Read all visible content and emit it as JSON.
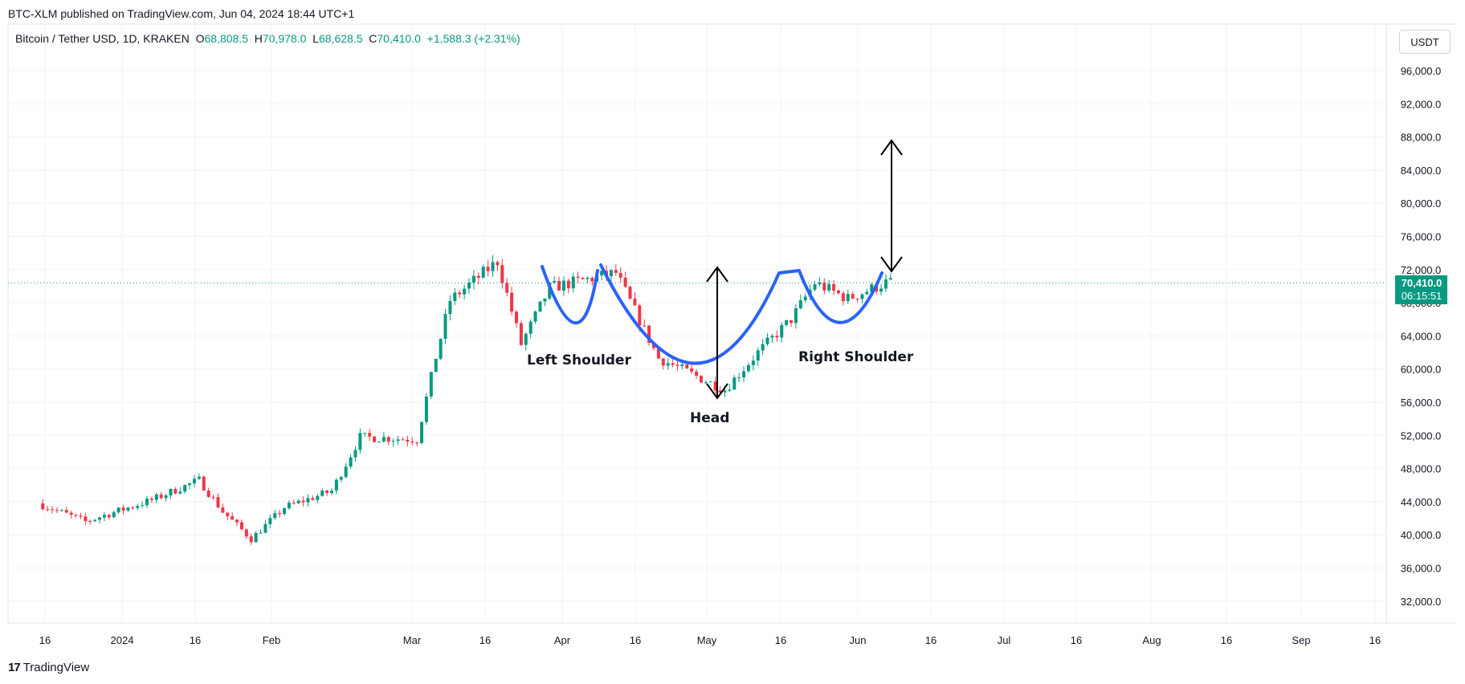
{
  "header": {
    "published": "BTC-XLM published on TradingView.com, Jun 04, 2024 18:44 UTC+1",
    "symbol": "Bitcoin / Tether USD, 1D, KRAKEN",
    "o_label": "O",
    "o_value": "68,808.5",
    "h_label": "H",
    "h_value": "70,978.0",
    "l_label": "L",
    "l_value": "68,628.5",
    "c_label": "C",
    "c_value": "70,410.0",
    "change": "+1,588.3 (+2.31%)"
  },
  "currency_button": "USDT",
  "footer": {
    "logo_mark": "17",
    "brand": "TradingView"
  },
  "colors": {
    "up": "#089981",
    "down": "#f23645",
    "pattern": "#2962ff",
    "arrow": "#000000"
  },
  "chart_data": {
    "type": "candlestick",
    "y_ticks": [
      "96,000.0",
      "92,000.0",
      "88,000.0",
      "84,000.0",
      "80,000.0",
      "76,000.0",
      "72,000.0",
      "68,000.0",
      "64,000.0",
      "60,000.0",
      "56,000.0",
      "52,000.0",
      "48,000.0",
      "44,000.0",
      "40,000.0",
      "36,000.0",
      "32,000.0"
    ],
    "x_ticks": [
      "16",
      "2024",
      "16",
      "Feb",
      "Mar",
      "16",
      "Apr",
      "16",
      "May",
      "16",
      "Jun",
      "16",
      "Jul",
      "16",
      "Aug",
      "16",
      "Sep",
      "16"
    ],
    "last_price": "70,410.0",
    "countdown": "06:15:51",
    "series": [
      {
        "x": "2023-12-08",
        "y": 43800
      },
      {
        "x": "2023-12-18",
        "y": 41600
      },
      {
        "x": "2024-01-01",
        "y": 44200
      },
      {
        "x": "2024-01-11",
        "y": 46600
      },
      {
        "x": "2024-01-16",
        "y": 42800
      },
      {
        "x": "2024-01-22",
        "y": 39500
      },
      {
        "x": "2024-01-29",
        "y": 43300
      },
      {
        "x": "2024-02-08",
        "y": 45300
      },
      {
        "x": "2024-02-14",
        "y": 51800
      },
      {
        "x": "2024-02-26",
        "y": 51500
      },
      {
        "x": "2024-03-01",
        "y": 61500
      },
      {
        "x": "2024-03-04",
        "y": 68300
      },
      {
        "x": "2024-03-14",
        "y": 73000
      },
      {
        "x": "2024-03-19",
        "y": 63000
      },
      {
        "x": "2024-03-25",
        "y": 69800
      },
      {
        "x": "2024-04-08",
        "y": 71600
      },
      {
        "x": "2024-04-17",
        "y": 61300
      },
      {
        "x": "2024-05-01",
        "y": 57500
      },
      {
        "x": "2024-05-08",
        "y": 62000
      },
      {
        "x": "2024-05-15",
        "y": 66000
      },
      {
        "x": "2024-05-20",
        "y": 70400
      },
      {
        "x": "2024-05-27",
        "y": 68500
      },
      {
        "x": "2024-06-04",
        "y": 70410
      }
    ],
    "annotations": {
      "left_shoulder": "Left Shoulder",
      "head": "Head",
      "right_shoulder": "Right Shoulder"
    }
  }
}
